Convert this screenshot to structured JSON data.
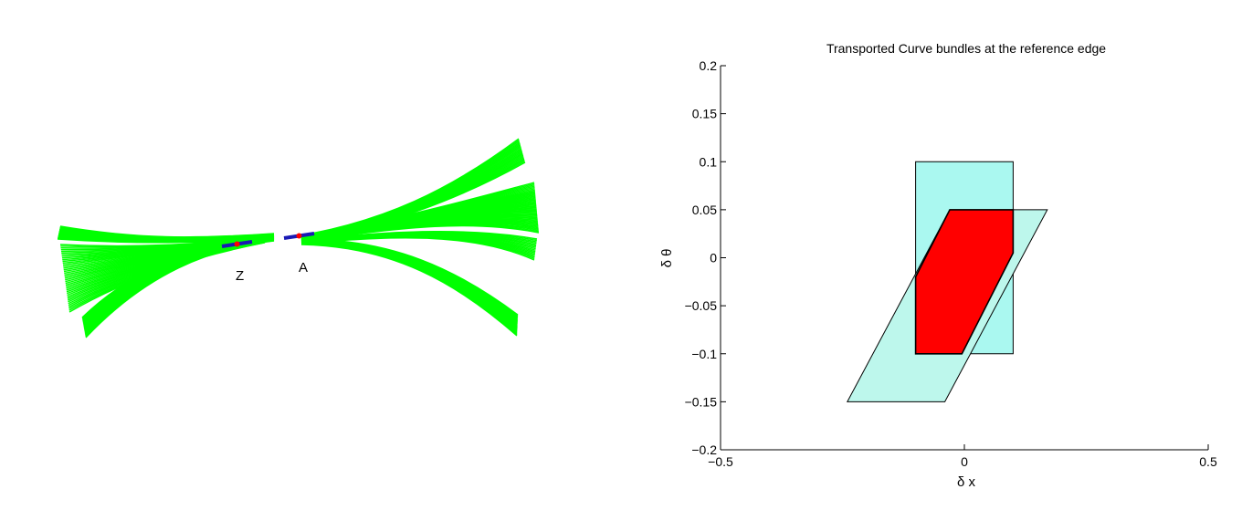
{
  "bundle_figure": {
    "point_labels": [
      "Z",
      "A"
    ],
    "colors": {
      "bundle": "#00ff00",
      "edge": "#1a1ab5",
      "point": "#ff0000"
    }
  },
  "chart_data": {
    "type": "area",
    "title": "Transported Curve bundles at the reference edge",
    "xlabel": "δ x",
    "ylabel": "δ θ",
    "xlim": [
      -0.5,
      0.5
    ],
    "ylim": [
      -0.2,
      0.2
    ],
    "x_ticks": [
      -0.5,
      0,
      0.5
    ],
    "x_tick_labels": [
      "−0.5",
      "0",
      "0.5"
    ],
    "y_ticks": [
      0.2,
      0.15,
      0.1,
      0.05,
      0,
      -0.05,
      -0.1,
      -0.15,
      -0.2
    ],
    "y_tick_labels": [
      "0.2",
      "0.15",
      "0.1",
      "0.05",
      "0",
      "−0.05",
      "−0.1",
      "−0.15",
      "−0.2"
    ],
    "grid": false,
    "series": [
      {
        "fill": "#aaf8f0",
        "points": [
          [
            -0.1,
            -0.1
          ],
          [
            0.1,
            -0.1
          ],
          [
            0.1,
            0.1
          ],
          [
            -0.1,
            0.1
          ]
        ]
      },
      {
        "fill": "#bdf7ec",
        "points": [
          [
            -0.24,
            -0.15
          ],
          [
            -0.04,
            -0.15
          ],
          [
            0.17,
            0.05
          ],
          [
            -0.03,
            0.05
          ]
        ]
      },
      {
        "fill": "#ff0000",
        "points": [
          [
            -0.1,
            -0.1
          ],
          [
            -0.005,
            -0.1
          ],
          [
            0.1,
            0.005
          ],
          [
            0.1,
            0.05
          ],
          [
            -0.03,
            0.05
          ],
          [
            -0.1,
            -0.02
          ]
        ]
      }
    ]
  }
}
